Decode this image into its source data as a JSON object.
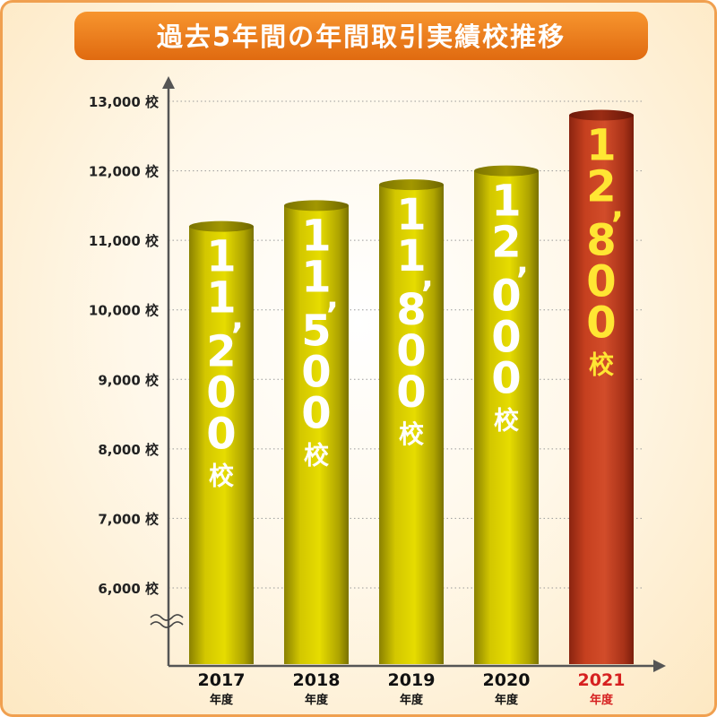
{
  "title": "過去5年間の年間取引実績校推移",
  "chart_data": {
    "type": "bar",
    "title": "過去5年間の年間取引実績校推移",
    "categories": [
      "2017",
      "2018",
      "2019",
      "2020",
      "2021"
    ],
    "category_unit": "年度",
    "values": [
      11200,
      11500,
      11800,
      12000,
      12800
    ],
    "value_labels": [
      "11,200校",
      "11,500校",
      "11,800校",
      "12,000校",
      "12,800校"
    ],
    "ylim": [
      5500,
      13000
    ],
    "yticks": [
      6000,
      7000,
      8000,
      9000,
      10000,
      11000,
      12000,
      13000
    ],
    "ytick_labels": [
      "6,000 校",
      "7,000 校",
      "8,000 校",
      "9,000 校",
      "10,000 校",
      "11,000 校",
      "12,000 校",
      "13,000 校"
    ],
    "axis_break": true,
    "grid": true,
    "highlight_index": 4,
    "colors": {
      "bar": "#c9be00",
      "bar_highlight": "#c03a20",
      "label": "#ffffff",
      "label_highlight": "#ffe633",
      "category_highlight": "#d62020",
      "title_bg": "#ee7518",
      "grid": "#9a9a9a",
      "axis": "#555555"
    }
  }
}
